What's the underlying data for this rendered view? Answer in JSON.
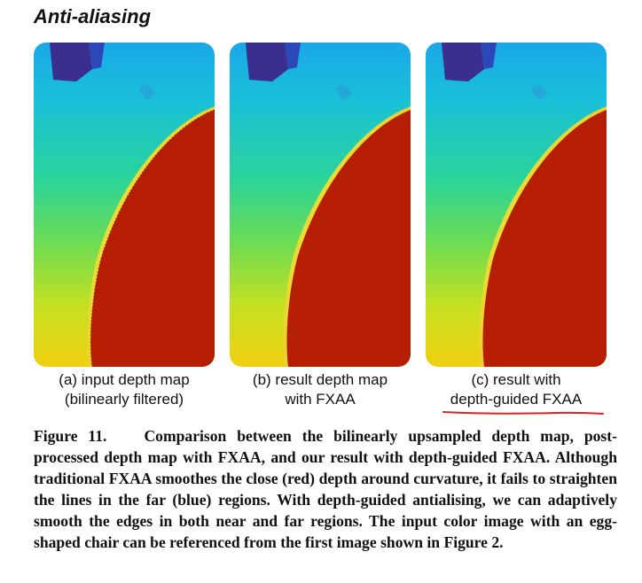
{
  "heading": "Anti-aliasing",
  "panels": [
    {
      "caption_line1": "(a) input depth map",
      "caption_line2": "(bilinearly filtered)"
    },
    {
      "caption_line1": "(b) result depth map",
      "caption_line2": "with FXAA"
    },
    {
      "caption_line1": "(c) result with",
      "caption_line2": "depth-guided FXAA"
    }
  ],
  "figure_caption": {
    "label": "Figure 11.",
    "text": "Comparison between the bilinearly upsampled depth map, post-processed depth map with FXAA, and our result with depth-guided FXAA. Although traditional FXAA smoothes the close (red) depth around curvature, it fails to straighten the lines in the far (blue) regions. With depth-guided antialising, we can adaptively smooth the edges in both near and far regions. The input color image with an egg-shaped chair can be referenced from the first image shown in Figure 2."
  },
  "colors": {
    "near_red": "#b51e02",
    "far_blue": "#3a2f8f",
    "annotation_red": "#e02020"
  }
}
